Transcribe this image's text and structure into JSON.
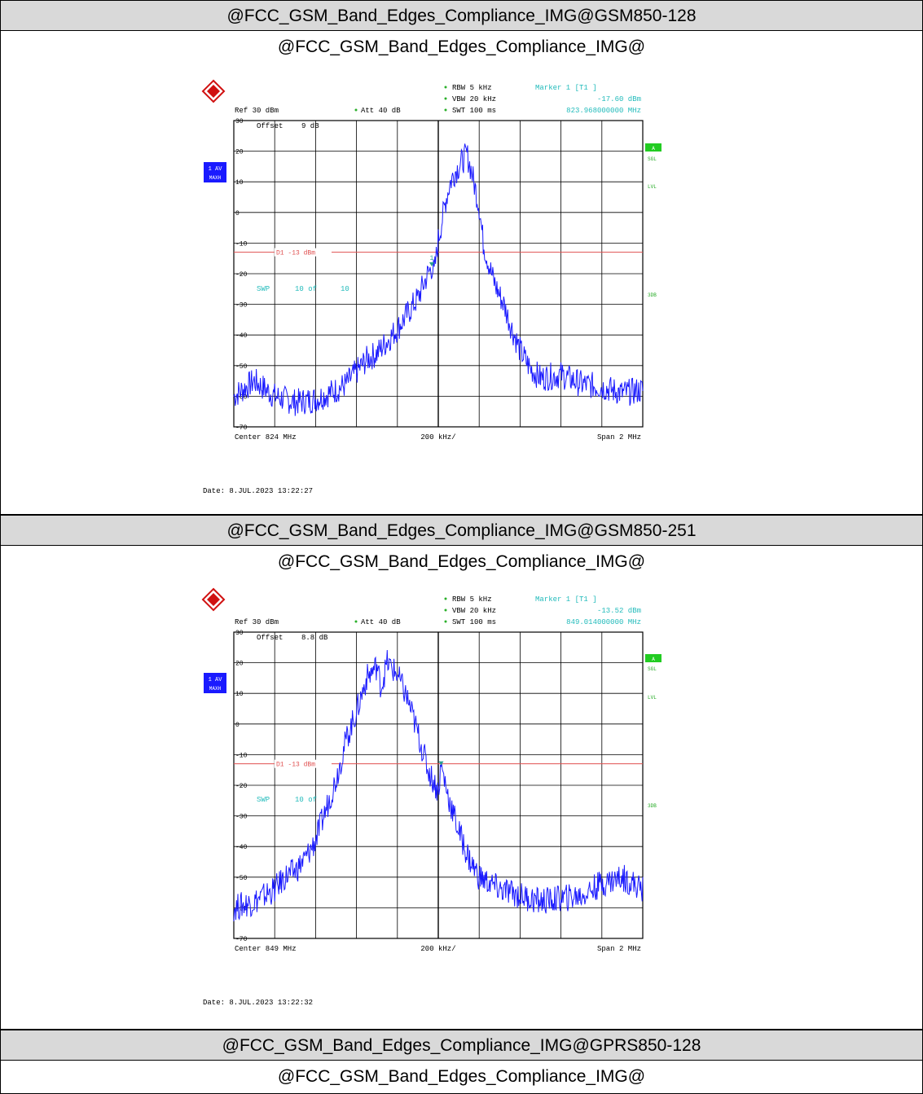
{
  "sections": [
    {
      "header": "@FCC_GSM_Band_Edges_Compliance_IMG@GSM850-128",
      "subheader": "@FCC_GSM_Band_Edges_Compliance_IMG@",
      "date": "Date: 8.JUL.2023  13:22:27"
    },
    {
      "header": "@FCC_GSM_Band_Edges_Compliance_IMG@GSM850-251",
      "subheader": "@FCC_GSM_Band_Edges_Compliance_IMG@",
      "date": "Date: 8.JUL.2023  13:22:32"
    },
    {
      "header": "@FCC_GSM_Band_Edges_Compliance_IMG@GPRS850-128",
      "subheader": "@FCC_GSM_Band_Edges_Compliance_IMG@"
    }
  ],
  "chart_data": [
    {
      "type": "line",
      "ref": "Ref  30 dBm",
      "offset_label": "Offset",
      "offset_value": "9 dB",
      "att": "Att  40 dB",
      "rbw": "RBW 5 kHz",
      "vbw": "VBW 20 kHz",
      "swt": "SWT 100 ms",
      "marker_title": "Marker 1 [T1 ]",
      "marker_level": "-17.60 dBm",
      "marker_freq": "823.968000000 MHz",
      "marker_label": "1",
      "marker": {
        "x": 823.968,
        "y": -17.6
      },
      "d1_label": "D1 -13 dBm",
      "d1_value": -13,
      "swp_label": "SWP",
      "swp_value": "10 of",
      "swp_total": "10",
      "trace_badge": "1 AV",
      "trace_badge2": "MAXH",
      "side_a": "A",
      "side_sgl": "SGL",
      "side_lvl": "LVL",
      "side_3db": "3DB",
      "x_left": "Center  824 MHz",
      "x_mid": "200 kHz/",
      "x_right": "Span  2 MHz",
      "xlim": [
        823.0,
        825.0
      ],
      "ylim": [
        -70,
        30
      ],
      "yticks": [
        "30",
        "20",
        "10",
        "0",
        "-10",
        "-20",
        "-30",
        "-40",
        "-50",
        "-60",
        "-70"
      ],
      "grid": true,
      "color": "#1a1aff",
      "series": [
        {
          "x": [
            823.0,
            823.1,
            823.2,
            823.3,
            823.4,
            823.5,
            823.55,
            823.6,
            823.65,
            823.7,
            823.75,
            823.8,
            823.85,
            823.9,
            823.95,
            823.97,
            823.98,
            824.0,
            824.02,
            824.04,
            824.06,
            824.08,
            824.1,
            824.12,
            824.14,
            824.16,
            824.18,
            824.2,
            824.22,
            824.24,
            824.26,
            824.28,
            824.3,
            824.32,
            824.34,
            824.36,
            824.4,
            824.45,
            824.5,
            824.6,
            824.7,
            824.8,
            824.9,
            825.0
          ],
          "y": [
            -60,
            -55,
            -60,
            -62,
            -61,
            -58,
            -56,
            -52,
            -48,
            -46,
            -42,
            -38,
            -33,
            -28,
            -20,
            -17.6,
            -20,
            -9,
            -2,
            5,
            10,
            13,
            15,
            17,
            19,
            14,
            8,
            2,
            -10,
            -15,
            -20,
            -24,
            -27,
            -30,
            -34,
            -38,
            -45,
            -51,
            -54,
            -53,
            -56,
            -57,
            -59,
            -58
          ]
        }
      ]
    },
    {
      "type": "line",
      "ref": "Ref  30 dBm",
      "offset_label": "Offset",
      "offset_value": "8.8 dB",
      "att": "Att  40 dB",
      "rbw": "RBW 5 kHz",
      "vbw": "VBW 20 kHz",
      "swt": "SWT 100 ms",
      "marker_title": "Marker 1 [T1 ]",
      "marker_level": "-13.52 dBm",
      "marker_freq": "849.014000000 MHz",
      "marker": {
        "x": 849.014,
        "y": -13.52
      },
      "d1_label": "D1 -13 dBm",
      "d1_value": -13,
      "swp_label": "SWP",
      "swp_value": "10 of",
      "trace_badge": "1 AV",
      "trace_badge2": "MAXH",
      "side_a": "A",
      "side_sgl": "SGL",
      "side_lvl": "LVL",
      "side_3db": "3DB",
      "x_left": "Center  849 MHz",
      "x_mid": "200 kHz/",
      "x_right": "Span  2 MHz",
      "xlim": [
        848.0,
        850.0
      ],
      "ylim": [
        -70,
        30
      ],
      "yticks": [
        "30",
        "20",
        "10",
        "0",
        "-10",
        "-20",
        "-30",
        "-40",
        "-50",
        "-60",
        "-70"
      ],
      "grid": true,
      "color": "#1a1aff",
      "series": [
        {
          "x": [
            848.0,
            848.1,
            848.2,
            848.25,
            848.3,
            848.35,
            848.4,
            848.45,
            848.5,
            848.55,
            848.6,
            848.65,
            848.7,
            848.72,
            848.75,
            848.8,
            848.85,
            848.9,
            848.95,
            849.0,
            849.014,
            849.05,
            849.1,
            849.15,
            849.2,
            849.3,
            849.4,
            849.5,
            849.6,
            849.7,
            849.8,
            849.9,
            850.0
          ],
          "y": [
            -60,
            -58,
            -54,
            -50,
            -48,
            -44,
            -38,
            -28,
            -18,
            -5,
            4,
            15,
            19,
            12,
            20,
            16,
            8,
            -3,
            -15,
            -22,
            -13.52,
            -24,
            -35,
            -44,
            -50,
            -54,
            -56,
            -58,
            -57,
            -56,
            -52,
            -50,
            -54
          ]
        }
      ]
    }
  ]
}
